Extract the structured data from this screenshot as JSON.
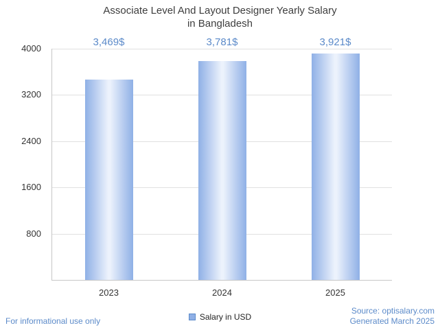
{
  "chart": {
    "title_line1": "Associate Level And Layout Designer Yearly Salary",
    "title_line2": "in Bangladesh",
    "legend_label": "Salary in USD"
  },
  "chart_data": {
    "type": "bar",
    "categories": [
      "2023",
      "2024",
      "2025"
    ],
    "values": [
      3469,
      3781,
      3921
    ],
    "value_labels": [
      "3,469$",
      "3,781$",
      "3,921$"
    ],
    "title": "Associate Level And Layout Designer Yearly Salary in Bangladesh",
    "xlabel": "",
    "ylabel": "",
    "ylim": [
      0,
      4000
    ],
    "yticks": [
      800,
      1600,
      2400,
      3200,
      4000
    ],
    "grid": true,
    "legend": [
      "Salary in USD"
    ],
    "legend_position": "bottom"
  },
  "footer": {
    "disclaimer": "For informational use only",
    "source": "Source: optisalary.com",
    "generated": "Generated March 2025"
  },
  "colors": {
    "accent": "#5b8ac9",
    "bar_edge": "#8fb0e6",
    "bar_center": "#ecf2fc",
    "gridline": "#e0e0e0",
    "title_text": "#3d3d3d"
  }
}
